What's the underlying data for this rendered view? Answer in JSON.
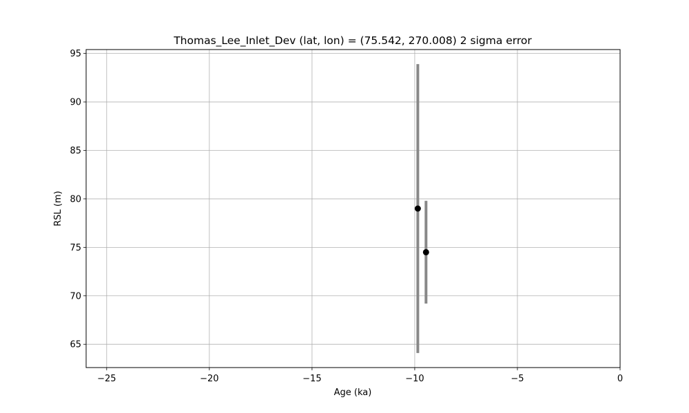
{
  "chart_data": {
    "type": "scatter",
    "title": "Thomas_Lee_Inlet_Dev (lat, lon) = (75.542, 270.008)  2 sigma error",
    "xlabel": "Age (ka)",
    "ylabel": "RSL (m)",
    "xlim": [
      -26.0,
      0.0
    ],
    "ylim": [
      62.6,
      95.4
    ],
    "xticks": [
      -25,
      -20,
      -15,
      -10,
      -5,
      0
    ],
    "xtick_labels": [
      "−25",
      "−20",
      "−15",
      "−10",
      "−5",
      "0"
    ],
    "yticks": [
      65,
      70,
      75,
      80,
      85,
      90,
      95
    ],
    "ytick_labels": [
      "65",
      "70",
      "75",
      "80",
      "85",
      "90",
      "95"
    ],
    "grid": true,
    "points": [
      {
        "x": -9.85,
        "y": 79.0,
        "y_err": 14.9
      },
      {
        "x": -9.45,
        "y": 74.5,
        "y_err": 5.3
      }
    ],
    "colors": {
      "marker": "#000000",
      "errorbar": "#888888",
      "grid": "#b0b0b0",
      "axes": "#000000"
    }
  }
}
